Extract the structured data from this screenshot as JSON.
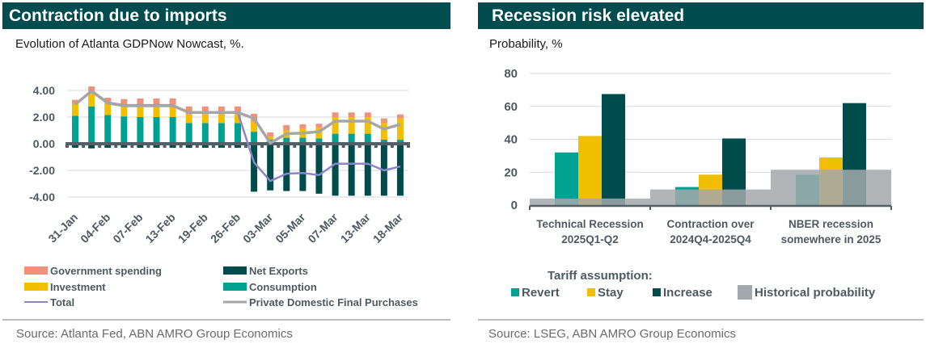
{
  "left": {
    "title": "Contraction due to imports",
    "subtitle": "Evolution of Atlanta GDPNow Nowcast, %.",
    "source": "Source:  Atlanta Fed, ABN AMRO Group Economics"
  },
  "right": {
    "title": "Recession risk elevated",
    "subtitle": "Probability, %",
    "source": "Source:  LSEG, ABN AMRO Group Economics",
    "legend_title": "Tariff assumption:"
  },
  "colors": {
    "government": "#f0917c",
    "investment": "#f2be00",
    "net_exports": "#004c4c",
    "consumption": "#00a093",
    "total": "#8d85c8",
    "pdfp": "#a6a6a6",
    "revert": "#00a093",
    "stay": "#f2be00",
    "increase": "#004c4c",
    "historical": "#a3a8ac",
    "axis": "#535f66",
    "grid": "#d9d9d9"
  },
  "chart_data": [
    {
      "type": "bar",
      "stacked": true,
      "title": "Contraction due to imports",
      "subtitle": "Evolution of Atlanta GDPNow Nowcast, %.",
      "xlabel": "",
      "ylabel": "",
      "ylim": [
        -4,
        4
      ],
      "yticks": [
        4,
        2,
        0,
        -2,
        -4
      ],
      "ytick_labels": [
        "4.00",
        "2.00",
        "0.00",
        "-2.00",
        "-4.00"
      ],
      "grid": true,
      "n_points": 21,
      "tick_labels": [
        "31-Jan",
        "04-Feb",
        "07-Feb",
        "13-Feb",
        "19-Feb",
        "26-Feb",
        "03-Mar",
        "05-Mar",
        "07-Mar",
        "13-Mar",
        "18-Mar"
      ],
      "tick_every": 2,
      "legend_position": "bottom",
      "series": [
        {
          "name": "Consumption",
          "kind": "bar",
          "values": [
            2.1,
            2.8,
            2.15,
            2.05,
            2.0,
            2.0,
            2.0,
            1.55,
            1.55,
            1.55,
            1.55,
            0.9,
            0.3,
            0.45,
            0.45,
            0.4,
            0.75,
            0.75,
            0.75,
            0.3,
            0.3
          ]
        },
        {
          "name": "Investment",
          "kind": "bar",
          "values": [
            0.9,
            1.15,
            0.95,
            0.95,
            0.95,
            0.95,
            0.95,
            0.65,
            0.65,
            0.65,
            0.65,
            0.75,
            0.25,
            0.55,
            0.65,
            0.8,
            1.25,
            1.25,
            1.25,
            1.25,
            1.6
          ]
        },
        {
          "name": "Government spending",
          "kind": "bar",
          "values": [
            0.3,
            0.35,
            0.35,
            0.35,
            0.45,
            0.45,
            0.45,
            0.6,
            0.6,
            0.6,
            0.6,
            0.6,
            0.3,
            0.4,
            0.35,
            0.3,
            0.35,
            0.35,
            0.35,
            0.35,
            0.3
          ]
        },
        {
          "name": "Net Exports",
          "kind": "bar",
          "values": [
            -0.3,
            -0.35,
            -0.3,
            -0.3,
            -0.3,
            -0.3,
            -0.3,
            -0.3,
            -0.3,
            -0.3,
            -0.3,
            -3.6,
            -3.5,
            -3.55,
            -3.55,
            -3.75,
            -3.9,
            -3.9,
            -3.9,
            -3.9,
            -3.9
          ]
        },
        {
          "name": "Total",
          "kind": "line",
          "values": [
            2.95,
            4.0,
            3.1,
            2.9,
            2.9,
            2.9,
            2.9,
            2.35,
            2.35,
            2.35,
            2.35,
            -1.4,
            -2.8,
            -2.25,
            -2.2,
            -2.35,
            -1.5,
            -1.5,
            -1.5,
            -2.0,
            -1.7
          ]
        },
        {
          "name": "Private Domestic Final Purchases",
          "kind": "line",
          "values": [
            2.95,
            3.95,
            3.05,
            2.85,
            2.85,
            2.85,
            2.85,
            2.35,
            2.35,
            2.35,
            2.35,
            1.9,
            0.05,
            0.75,
            0.8,
            0.9,
            1.7,
            1.7,
            1.7,
            1.1,
            1.45
          ]
        }
      ],
      "legend": [
        "Government spending",
        "Net Exports",
        "Investment",
        "Consumption",
        "Total",
        "Private Domestic Final Purchases"
      ]
    },
    {
      "type": "bar",
      "title": "Recession risk elevated",
      "subtitle": "Probability, %",
      "xlabel": "",
      "ylabel": "",
      "ylim": [
        0,
        80
      ],
      "yticks": [
        0,
        20,
        40,
        60,
        80
      ],
      "grid": true,
      "categories": [
        [
          "Technical Recession",
          "2025Q1-Q2"
        ],
        [
          "Contraction over",
          "2024Q4-2025Q4"
        ],
        [
          "NBER recession",
          "somewhere in 2025"
        ]
      ],
      "legend_title": "Tariff assumption:",
      "legend_position": "bottom",
      "series": [
        {
          "name": "Revert",
          "values": [
            32,
            11,
            18.5
          ]
        },
        {
          "name": "Stay",
          "values": [
            42,
            18.5,
            29
          ]
        },
        {
          "name": "Increase",
          "values": [
            67.5,
            40.5,
            62
          ]
        },
        {
          "name": "Historical probability",
          "values": [
            4,
            9.5,
            21.5
          ],
          "overlay": true
        }
      ]
    }
  ]
}
